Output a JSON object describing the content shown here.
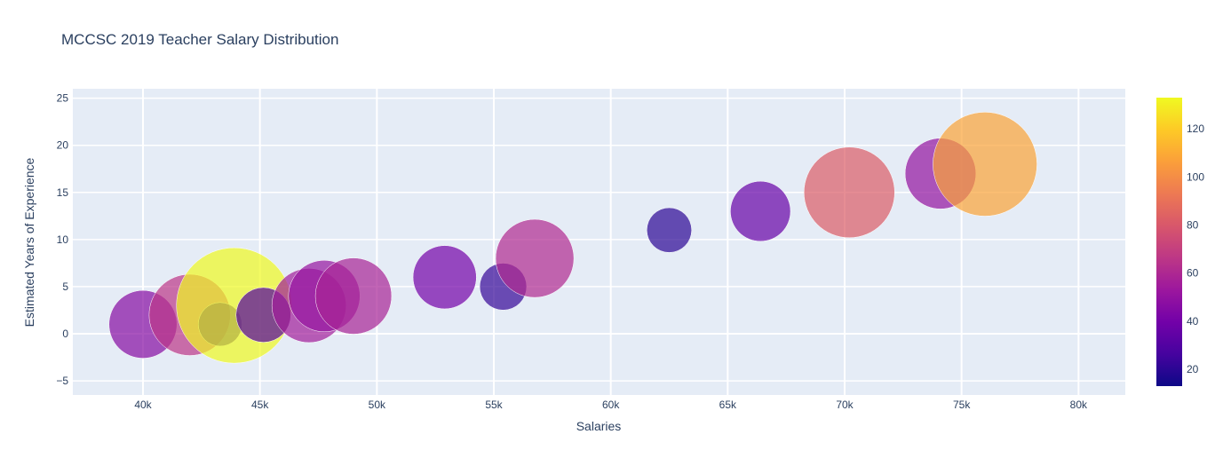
{
  "chart_data": {
    "type": "scatter",
    "title": "MCCSC 2019 Teacher Salary Distribution",
    "xlabel": "Salaries",
    "ylabel": "Estimated Years of Experience",
    "xlim": [
      37000,
      82000
    ],
    "ylim": [
      -6.5,
      26
    ],
    "x_ticks": [
      40000,
      45000,
      50000,
      55000,
      60000,
      65000,
      70000,
      75000,
      80000
    ],
    "x_tick_labels": [
      "40k",
      "45k",
      "50k",
      "55k",
      "60k",
      "65k",
      "70k",
      "75k",
      "80k"
    ],
    "y_ticks": [
      -5,
      0,
      5,
      10,
      15,
      20,
      25
    ],
    "y_tick_labels": [
      "−5",
      "0",
      "5",
      "10",
      "15",
      "20",
      "25"
    ],
    "grid": true,
    "plot_background": "#e5ecf6",
    "colorscale": "plasma",
    "color_range": [
      13,
      133
    ],
    "colorbar_ticks": [
      20,
      40,
      60,
      80,
      100,
      120
    ],
    "colorbar_tick_labels": [
      "20",
      "40",
      "60",
      "80",
      "100",
      "120"
    ],
    "points": [
      {
        "x": 40000,
        "y": 1,
        "count": 46
      },
      {
        "x": 42000,
        "y": 2,
        "count": 66
      },
      {
        "x": 43300,
        "y": 1,
        "count": 19
      },
      {
        "x": 43900,
        "y": 3,
        "count": 133
      },
      {
        "x": 45150,
        "y": 2,
        "count": 30
      },
      {
        "x": 47100,
        "y": 3,
        "count": 55
      },
      {
        "x": 47750,
        "y": 4,
        "count": 51
      },
      {
        "x": 49000,
        "y": 4,
        "count": 58
      },
      {
        "x": 52900,
        "y": 6,
        "count": 40
      },
      {
        "x": 55400,
        "y": 5,
        "count": 22
      },
      {
        "x": 56750,
        "y": 8,
        "count": 61
      },
      {
        "x": 62500,
        "y": 11,
        "count": 20
      },
      {
        "x": 66400,
        "y": 13,
        "count": 36
      },
      {
        "x": 70200,
        "y": 15,
        "count": 82
      },
      {
        "x": 74100,
        "y": 17,
        "count": 50
      },
      {
        "x": 76000,
        "y": 18,
        "count": 108
      }
    ]
  }
}
